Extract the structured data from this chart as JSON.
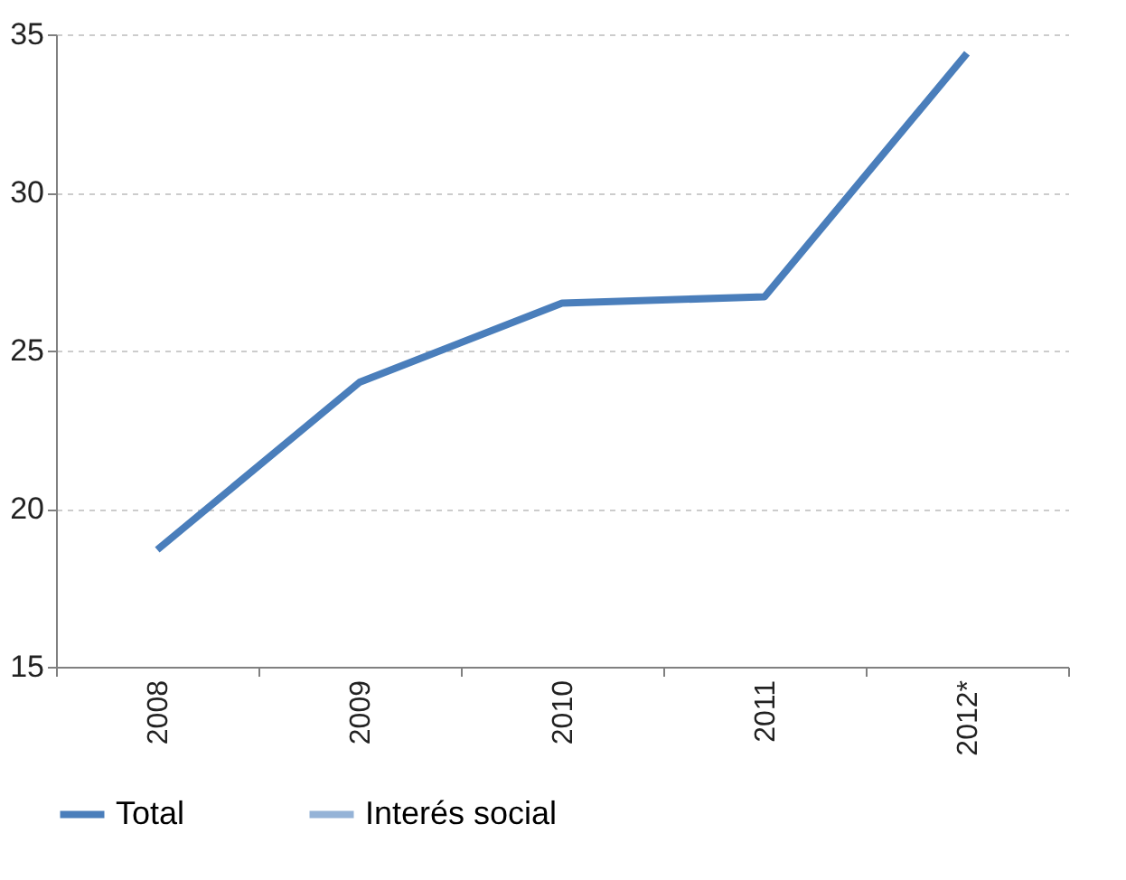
{
  "chart_data": {
    "type": "line",
    "categories": [
      "2008",
      "2009",
      "2010",
      "2011",
      "2012*"
    ],
    "series": [
      {
        "name": "Total",
        "color": "#4a7ebb",
        "values": [
          18.7,
          24.0,
          26.5,
          26.7,
          34.4
        ]
      },
      {
        "name": "Interés social",
        "color": "#95b3d7",
        "values": [
          null,
          null,
          null,
          null,
          null
        ]
      }
    ],
    "ylim": [
      15,
      35
    ],
    "yticks": [
      15,
      20,
      25,
      30,
      35
    ],
    "grid": "y",
    "legend": "bottom",
    "marker": "none",
    "line_style": "solid"
  }
}
